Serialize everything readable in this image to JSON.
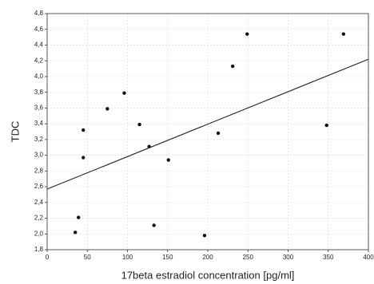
{
  "chart_data": {
    "type": "scatter",
    "x_label": "17beta estradiol concentration [pg/ml]",
    "y_label": "TDC",
    "x": [
      35,
      39,
      45,
      45,
      75,
      96,
      115,
      127,
      133,
      151,
      196,
      213,
      231,
      249,
      348,
      369
    ],
    "y": [
      2.02,
      2.21,
      3.32,
      2.97,
      3.59,
      3.79,
      3.39,
      3.11,
      2.11,
      2.94,
      1.98,
      3.28,
      4.13,
      4.54,
      3.38,
      4.54
    ],
    "color": "#111111",
    "fit_line": {
      "x": [
        0,
        400
      ],
      "y": [
        2.57,
        4.22
      ],
      "color": "#222222"
    },
    "xlim": [
      0,
      400
    ],
    "xticks": [
      0,
      50,
      100,
      150,
      200,
      250,
      300,
      350,
      400
    ],
    "ylim": [
      1.8,
      4.8
    ],
    "yticks": [
      {
        "value": 1.8,
        "label": "1,8"
      },
      {
        "value": 2.0,
        "label": "2,0"
      },
      {
        "value": 2.2,
        "label": "2,2"
      },
      {
        "value": 2.4,
        "label": "2,4"
      },
      {
        "value": 2.6,
        "label": "2,6"
      },
      {
        "value": 2.8,
        "label": "2,8"
      },
      {
        "value": 3.0,
        "label": "3,0"
      },
      {
        "value": 3.2,
        "label": "3,2"
      },
      {
        "value": 3.4,
        "label": "3,4"
      },
      {
        "value": 3.6,
        "label": "3,6"
      },
      {
        "value": 3.8,
        "label": "3,8"
      },
      {
        "value": 4.0,
        "label": "4,0"
      },
      {
        "value": 4.2,
        "label": "4,2"
      },
      {
        "value": 4.4,
        "label": "4,4"
      },
      {
        "value": 4.6,
        "label": "4,6"
      },
      {
        "value": 4.8,
        "label": "4,8"
      }
    ],
    "grid": true
  }
}
